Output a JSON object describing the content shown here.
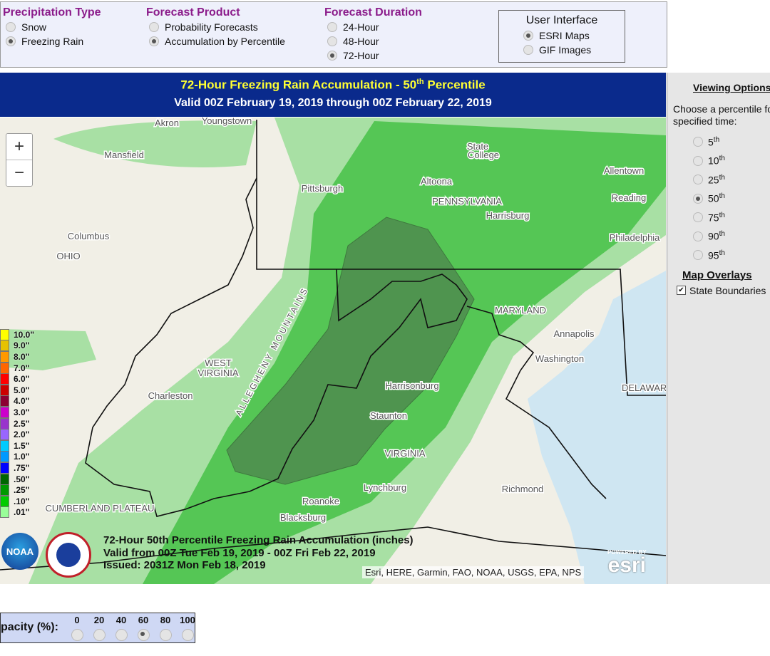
{
  "controls": [
    {
      "title": "Precipitation Type",
      "options": [
        "Snow",
        "Freezing Rain"
      ],
      "selected": 1
    },
    {
      "title": "Forecast Product",
      "options": [
        "Probability Forecasts",
        "Accumulation by Percentile"
      ],
      "selected": 1
    },
    {
      "title": "Forecast Duration",
      "options": [
        "24-Hour",
        "48-Hour",
        "72-Hour"
      ],
      "selected": 2
    }
  ],
  "user_interface": {
    "title": "User Interface",
    "options": [
      "ESRI Maps",
      "GIF Images"
    ],
    "selected": 0
  },
  "map_header": {
    "title": "72-Hour Freezing Rain Accumulation - 50",
    "title_sup": "th",
    "title_end": " Percentile",
    "subtitle": "Valid 00Z February 19, 2019 through 00Z February 22, 2019"
  },
  "viewing_options": {
    "title": "Viewing Options",
    "prompt": "Choose a percentile for specified time:",
    "percentiles": [
      {
        "value": "5",
        "suffix": "th"
      },
      {
        "value": "10",
        "suffix": "th"
      },
      {
        "value": "25",
        "suffix": "th"
      },
      {
        "value": "50",
        "suffix": "th"
      },
      {
        "value": "75",
        "suffix": "th"
      },
      {
        "value": "90",
        "suffix": "th"
      },
      {
        "value": "95",
        "suffix": "th"
      }
    ],
    "selected": 3
  },
  "map_overlays": {
    "title": "Map Overlays",
    "checkbox": "State Boundaries",
    "checked": true
  },
  "legend": {
    "labels": [
      "10.0\"",
      "9.0\"",
      "8.0\"",
      "7.0\"",
      "6.0\"",
      "5.0\"",
      "4.0\"",
      "3.0\"",
      "2.5\"",
      "2.0\"",
      "1.5\"",
      "1.0\"",
      ".75\"",
      ".50\"",
      ".25\"",
      ".10\"",
      ".01\""
    ],
    "colors": [
      "#ffff00",
      "#e6c200",
      "#ff9900",
      "#ff6600",
      "#ff0000",
      "#cc0000",
      "#8b0033",
      "#cc00cc",
      "#9933cc",
      "#9966ff",
      "#00ccff",
      "#0099ff",
      "#0000ff",
      "#006600",
      "#009900",
      "#00cc00",
      "#99ff99"
    ]
  },
  "map_labels": [
    "Akron",
    "Youngstown",
    "Mansfield",
    "State",
    "College",
    "Pittsburgh",
    "Altoona",
    "Allentown",
    "PENNSYLVANIA",
    "Reading",
    "Harrisburg",
    "Columbus",
    "Philadelphia",
    "OHIO",
    "MARYLAND",
    "Annapolis",
    "Washington",
    "WEST",
    "VIRGINIA",
    "Charleston",
    "Harrisonburg",
    "Staunton",
    "VIRGINIA",
    "Richmond",
    "Lynchburg",
    "Roanoke",
    "Blacksburg",
    "DELAWARE",
    "CUMBERLAND PLATEAU",
    "ALLEGHENY MOUNTAINS"
  ],
  "map_caption": [
    "72-Hour 50th Percentile Freezing Rain Accumulation (inches)",
    "Valid from 00Z Tue Feb 19, 2019 - 00Z Fri Feb 22, 2019",
    "Issued: 2031Z Mon Feb 18, 2019"
  ],
  "attribution": "Esri, HERE, Garmin, FAO, NOAA, USGS, EPA, NPS",
  "esri": {
    "powered": "POWERED BY",
    "name": "esri"
  },
  "noaa": "NOAA",
  "zoom": [
    "+",
    "−"
  ],
  "opacity": {
    "label": "pacity (%):",
    "options": [
      "0",
      "20",
      "40",
      "60",
      "80",
      "100"
    ],
    "selected": 3
  }
}
